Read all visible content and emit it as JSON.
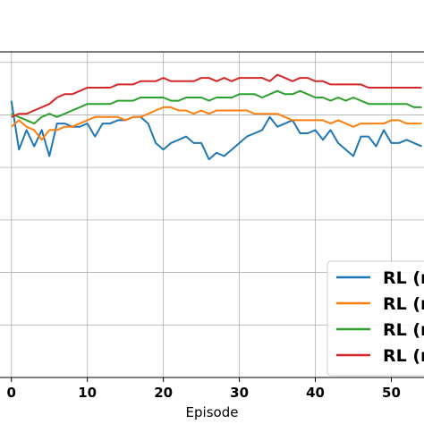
{
  "chart_data": {
    "type": "line",
    "xlabel": "Episode",
    "ylabel": "",
    "xlim": [
      -1.5,
      54.3
    ],
    "ylim": [
      0.0,
      1.0
    ],
    "xticks": [
      0,
      10,
      20,
      30,
      40,
      50
    ],
    "xtick_labels": [
      "0",
      "10",
      "20",
      "30",
      "40",
      "50"
    ],
    "grid": true,
    "legend_position": "lower-right",
    "x": [
      0,
      1,
      2,
      3,
      4,
      5,
      6,
      7,
      8,
      9,
      10,
      11,
      12,
      13,
      14,
      15,
      16,
      17,
      18,
      19,
      20,
      21,
      22,
      23,
      24,
      25,
      26,
      27,
      28,
      29,
      30,
      31,
      32,
      33,
      34,
      35,
      36,
      37,
      38,
      39,
      40,
      41,
      42,
      43,
      44,
      45,
      46,
      47,
      48,
      49,
      50,
      51,
      52,
      53,
      54
    ],
    "series": [
      {
        "name": "RL (r",
        "color": "#1f77b4",
        "values": [
          0.85,
          0.7,
          0.76,
          0.71,
          0.76,
          0.68,
          0.78,
          0.78,
          0.77,
          0.77,
          0.78,
          0.74,
          0.78,
          0.78,
          0.79,
          0.79,
          0.8,
          0.8,
          0.78,
          0.72,
          0.7,
          0.72,
          0.73,
          0.74,
          0.72,
          0.72,
          0.67,
          0.69,
          0.68,
          0.7,
          0.72,
          0.74,
          0.75,
          0.76,
          0.8,
          0.77,
          0.78,
          0.79,
          0.75,
          0.75,
          0.76,
          0.73,
          0.76,
          0.72,
          0.7,
          0.68,
          0.74,
          0.74,
          0.71,
          0.76,
          0.72,
          0.72,
          0.73,
          0.72,
          0.71
        ]
      },
      {
        "name": "RL (r",
        "color": "#ff7f0e",
        "values": [
          0.77,
          0.79,
          0.77,
          0.76,
          0.73,
          0.76,
          0.76,
          0.77,
          0.77,
          0.78,
          0.79,
          0.8,
          0.8,
          0.8,
          0.8,
          0.79,
          0.8,
          0.8,
          0.81,
          0.82,
          0.83,
          0.83,
          0.82,
          0.82,
          0.81,
          0.82,
          0.81,
          0.82,
          0.82,
          0.82,
          0.82,
          0.82,
          0.81,
          0.81,
          0.81,
          0.81,
          0.8,
          0.79,
          0.79,
          0.79,
          0.79,
          0.79,
          0.78,
          0.79,
          0.78,
          0.77,
          0.78,
          0.78,
          0.78,
          0.78,
          0.79,
          0.79,
          0.78,
          0.78,
          0.78
        ]
      },
      {
        "name": "RL (r",
        "color": "#2ca02c",
        "values": [
          0.81,
          0.8,
          0.79,
          0.78,
          0.8,
          0.81,
          0.8,
          0.81,
          0.82,
          0.83,
          0.84,
          0.84,
          0.84,
          0.84,
          0.85,
          0.85,
          0.85,
          0.86,
          0.86,
          0.86,
          0.86,
          0.85,
          0.85,
          0.86,
          0.86,
          0.86,
          0.85,
          0.86,
          0.86,
          0.86,
          0.87,
          0.87,
          0.87,
          0.86,
          0.87,
          0.88,
          0.87,
          0.87,
          0.88,
          0.87,
          0.86,
          0.86,
          0.85,
          0.86,
          0.85,
          0.86,
          0.85,
          0.84,
          0.84,
          0.84,
          0.84,
          0.84,
          0.84,
          0.83,
          0.83
        ]
      },
      {
        "name": "RL (r",
        "color": "#d62728",
        "values": [
          0.8,
          0.81,
          0.81,
          0.82,
          0.83,
          0.84,
          0.86,
          0.87,
          0.87,
          0.88,
          0.89,
          0.89,
          0.89,
          0.89,
          0.9,
          0.9,
          0.9,
          0.91,
          0.91,
          0.91,
          0.92,
          0.91,
          0.91,
          0.91,
          0.91,
          0.92,
          0.92,
          0.91,
          0.92,
          0.91,
          0.92,
          0.92,
          0.92,
          0.92,
          0.91,
          0.93,
          0.92,
          0.91,
          0.92,
          0.92,
          0.91,
          0.91,
          0.9,
          0.9,
          0.9,
          0.9,
          0.9,
          0.89,
          0.89,
          0.89,
          0.89,
          0.89,
          0.89,
          0.89,
          0.89
        ]
      }
    ]
  }
}
